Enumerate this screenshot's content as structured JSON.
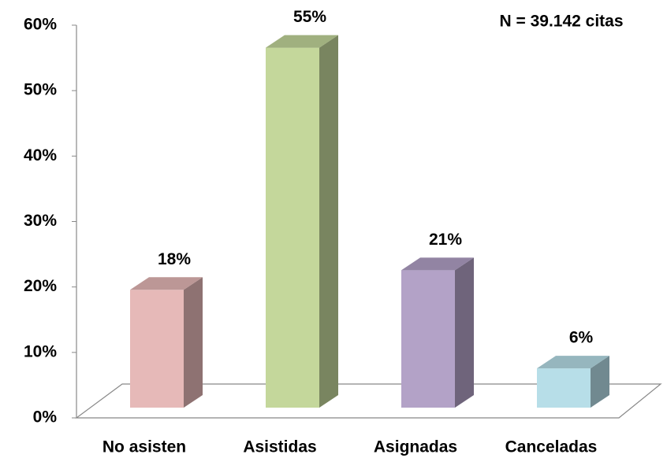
{
  "chart_data": {
    "type": "bar3d",
    "annotation": "N = 39.142 citas",
    "categories": [
      "No asisten",
      "Asistidas",
      "Asignadas",
      "Canceladas"
    ],
    "values": [
      18,
      55,
      21,
      6
    ],
    "value_labels": [
      "18%",
      "55%",
      "21%",
      "6%"
    ],
    "colors": [
      "#e6b9b8",
      "#c4d79b",
      "#b3a2c7",
      "#b7dee8"
    ],
    "ylim": [
      0,
      60
    ],
    "yticks": [
      {
        "value": 0,
        "label": "0%"
      },
      {
        "value": 10,
        "label": "10%"
      },
      {
        "value": 20,
        "label": "20%"
      },
      {
        "value": 30,
        "label": "30%"
      },
      {
        "value": 40,
        "label": "40%"
      },
      {
        "value": 50,
        "label": "50%"
      },
      {
        "value": 60,
        "label": "60%"
      }
    ]
  }
}
